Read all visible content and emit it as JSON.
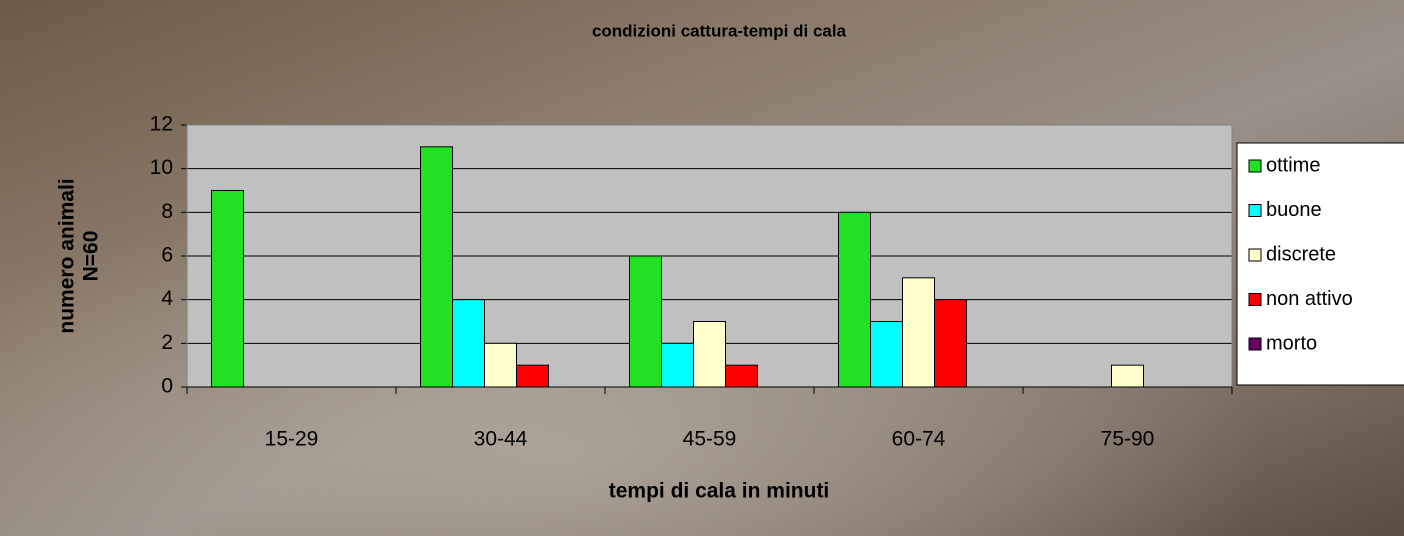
{
  "chart_data": {
    "type": "bar",
    "title": "condizioni cattura-tempi di cala",
    "xlabel": "tempi di cala in minuti",
    "ylabel": [
      "numero animali",
      "N=60"
    ],
    "categories": [
      "15-29",
      "30-44",
      "45-59",
      "60-74",
      "75-90"
    ],
    "series": [
      {
        "name": "ottime",
        "color": "#22e022",
        "values": [
          9,
          11,
          6,
          8,
          0
        ]
      },
      {
        "name": "buone",
        "color": "#00ffff",
        "values": [
          0,
          4,
          2,
          3,
          0
        ]
      },
      {
        "name": "discrete",
        "color": "#ffffcc",
        "values": [
          0,
          2,
          3,
          5,
          1
        ]
      },
      {
        "name": "non attivo",
        "color": "#ff0000",
        "values": [
          0,
          1,
          1,
          4,
          0
        ]
      },
      {
        "name": "morto",
        "color": "#660066",
        "values": [
          0,
          0,
          0,
          0,
          0
        ]
      }
    ],
    "ylim": [
      0,
      12
    ],
    "yticks": [
      0,
      2,
      4,
      6,
      8,
      10,
      12
    ],
    "grid": true
  }
}
